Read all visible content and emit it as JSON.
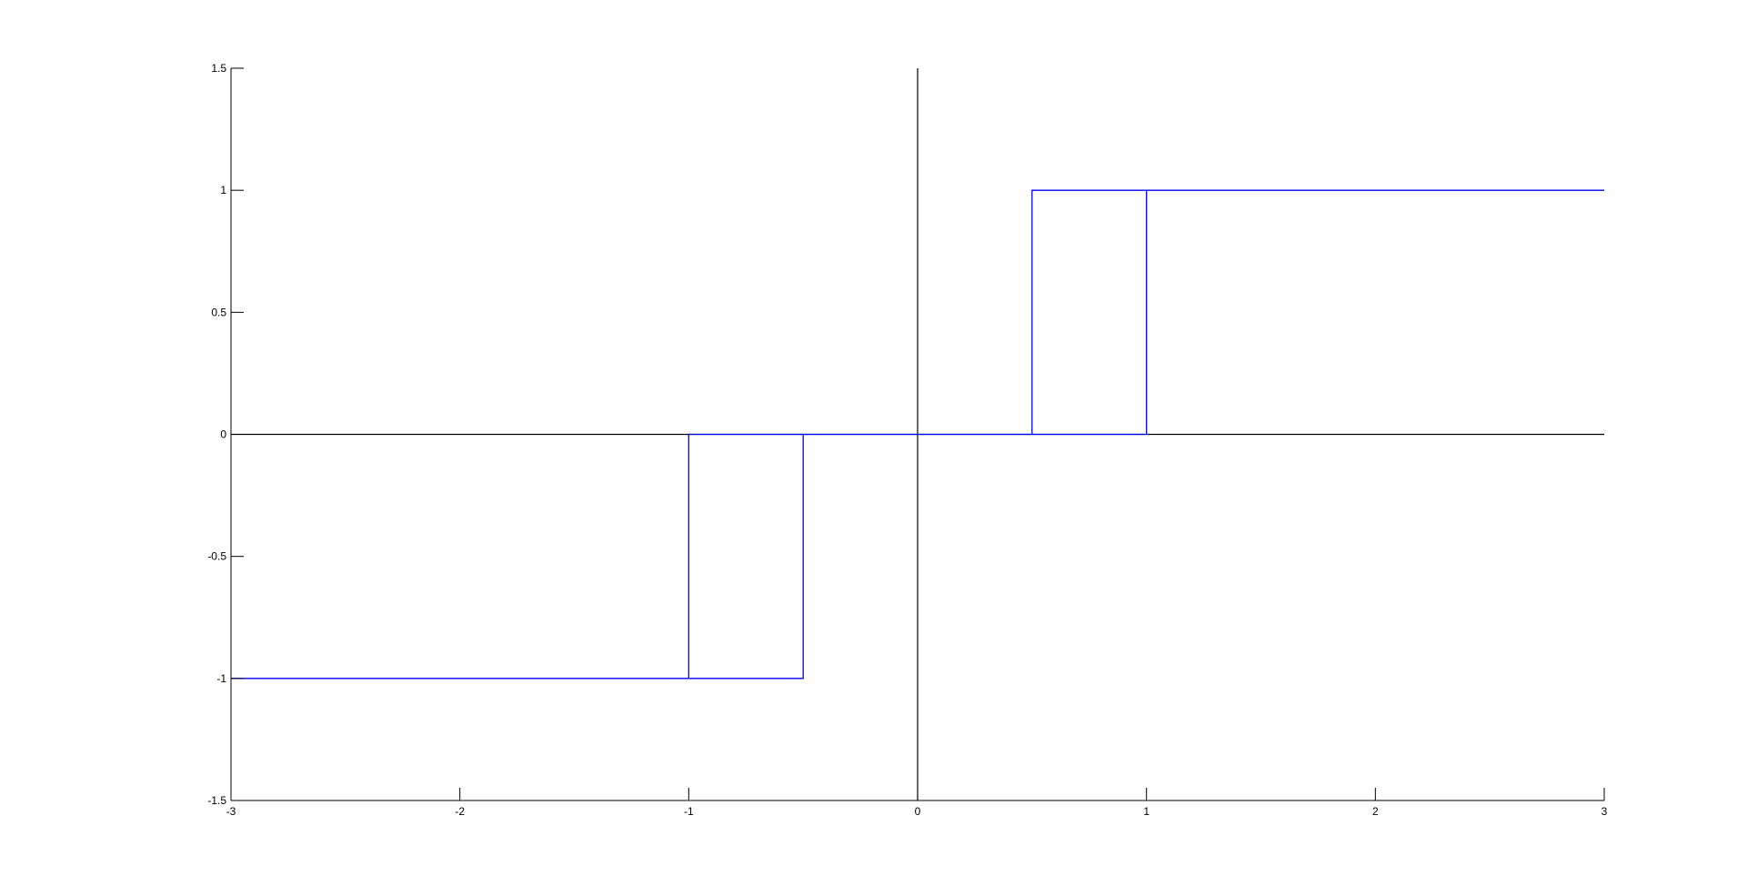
{
  "chart_data": {
    "type": "line",
    "title": "",
    "xlabel": "",
    "ylabel": "",
    "xlim": [
      -3,
      3
    ],
    "ylim": [
      -1.5,
      1.5
    ],
    "grid": false,
    "legend": "none",
    "x_ticks": [
      -3,
      -2,
      -1,
      0,
      1,
      2,
      3
    ],
    "x_tick_labels": [
      "-3",
      "-2",
      "-1",
      "0",
      "1",
      "2",
      "3"
    ],
    "y_ticks": [
      -1.5,
      -1,
      -0.5,
      0,
      0.5,
      1,
      1.5
    ],
    "y_tick_labels": [
      "-1.5",
      "-1",
      "-0.5",
      "0",
      "0.5",
      "1",
      "1.5"
    ],
    "reference_lines": [
      {
        "orientation": "horizontal",
        "value": 0,
        "color": "#000000"
      },
      {
        "orientation": "vertical",
        "value": 0,
        "color": "#000000"
      }
    ],
    "series": [
      {
        "color": "#0000ff",
        "x": [
          -3,
          -1,
          -1,
          -0.5,
          -0.5,
          -1,
          -1,
          0,
          0.5,
          0.5,
          1,
          1,
          0.5,
          0.5,
          1,
          3
        ],
        "y": [
          -1,
          -1,
          0,
          0,
          -1,
          -1,
          0,
          0,
          0,
          1,
          1,
          0,
          0,
          1,
          1,
          1
        ]
      }
    ]
  }
}
